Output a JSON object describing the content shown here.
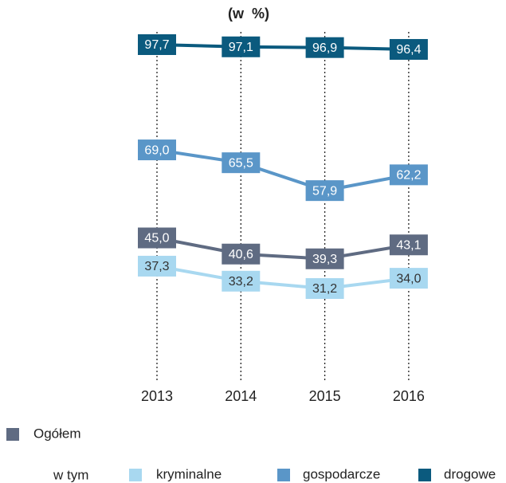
{
  "chart_data": {
    "type": "line",
    "title": "(w  %)",
    "legend_note": "w tym",
    "categories": [
      "2013",
      "2014",
      "2015",
      "2016"
    ],
    "series": [
      {
        "name": "Ogółem",
        "color": "#5f6b82",
        "label_color": "#ffffff",
        "values": [
          45.0,
          40.6,
          39.3,
          43.1
        ],
        "value_labels": [
          "45,0",
          "40,6",
          "39,3",
          "43,1"
        ]
      },
      {
        "name": "kryminalne",
        "color": "#a8d8f0",
        "label_color": "#333333",
        "values": [
          37.3,
          33.2,
          31.2,
          34.0
        ],
        "value_labels": [
          "37,3",
          "33,2",
          "31,2",
          "34,0"
        ]
      },
      {
        "name": "gospodarcze",
        "color": "#5a96c8",
        "label_color": "#ffffff",
        "values": [
          69.0,
          65.5,
          57.9,
          62.2
        ],
        "value_labels": [
          "69,0",
          "65,5",
          "57,9",
          "62,2"
        ]
      },
      {
        "name": "drogowe",
        "color": "#0b5a7e",
        "label_color": "#ffffff",
        "values": [
          97.7,
          97.1,
          96.9,
          96.4
        ],
        "value_labels": [
          "97,7",
          "97,1",
          "96,9",
          "96,4"
        ]
      }
    ]
  }
}
